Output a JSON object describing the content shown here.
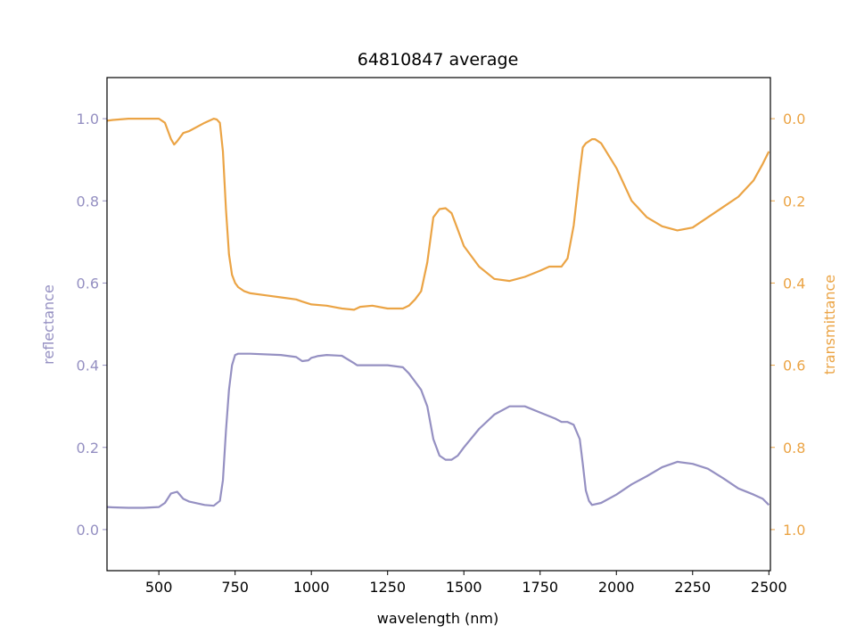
{
  "chart_data": {
    "type": "line",
    "title": "64810847 average",
    "xlabel": "wavelength (nm)",
    "ylabel_left": "reflectance",
    "ylabel_right": "transmittance",
    "xlim": [
      330,
      2505
    ],
    "ylim_left": [
      -0.1,
      1.1
    ],
    "ylim_right_inverted": [
      1.1,
      -0.1
    ],
    "xticks": [
      500,
      750,
      1000,
      1250,
      1500,
      1750,
      2000,
      2250,
      2500
    ],
    "yticks_left": [
      0.0,
      0.2,
      0.4,
      0.6,
      0.8,
      1.0
    ],
    "yticks_right": [
      0.0,
      0.2,
      0.4,
      0.6,
      0.8,
      1.0
    ],
    "xtick_labels": [
      "500",
      "750",
      "1000",
      "1250",
      "1500",
      "1750",
      "2000",
      "2250",
      "2500"
    ],
    "ytick_labels_left": [
      "0.0",
      "0.2",
      "0.4",
      "0.6",
      "0.8",
      "1.0"
    ],
    "ytick_labels_right": [
      "0.0",
      "0.2",
      "0.4",
      "0.6",
      "0.8",
      "1.0"
    ],
    "grid": false,
    "colors": {
      "reflectance": "#9590c2",
      "transmittance": "#eba445"
    },
    "series": [
      {
        "axis": "left",
        "color": "#9590c2",
        "x": [
          330,
          350,
          400,
          450,
          500,
          520,
          540,
          560,
          580,
          600,
          650,
          680,
          700,
          710,
          720,
          730,
          740,
          750,
          760,
          800,
          900,
          950,
          970,
          990,
          1000,
          1010,
          1020,
          1050,
          1100,
          1140,
          1150,
          1160,
          1200,
          1250,
          1300,
          1320,
          1340,
          1360,
          1380,
          1390,
          1400,
          1420,
          1440,
          1460,
          1480,
          1500,
          1550,
          1600,
          1650,
          1700,
          1750,
          1800,
          1820,
          1840,
          1860,
          1880,
          1890,
          1900,
          1910,
          1920,
          1950,
          2000,
          2050,
          2100,
          2150,
          2200,
          2250,
          2300,
          2350,
          2400,
          2450,
          2480,
          2500
        ],
        "y": [
          0.055,
          0.054,
          0.053,
          0.053,
          0.055,
          0.065,
          0.088,
          0.092,
          0.075,
          0.068,
          0.06,
          0.058,
          0.07,
          0.12,
          0.24,
          0.34,
          0.4,
          0.425,
          0.428,
          0.428,
          0.425,
          0.42,
          0.41,
          0.412,
          0.418,
          0.42,
          0.422,
          0.425,
          0.423,
          0.405,
          0.4,
          0.4,
          0.4,
          0.4,
          0.395,
          0.38,
          0.36,
          0.34,
          0.3,
          0.26,
          0.22,
          0.18,
          0.17,
          0.17,
          0.18,
          0.2,
          0.245,
          0.28,
          0.3,
          0.3,
          0.285,
          0.27,
          0.262,
          0.262,
          0.255,
          0.22,
          0.16,
          0.095,
          0.07,
          0.06,
          0.065,
          0.085,
          0.11,
          0.13,
          0.152,
          0.165,
          0.16,
          0.148,
          0.125,
          0.1,
          0.085,
          0.075,
          0.06
        ]
      },
      {
        "axis": "right",
        "color": "#eba445",
        "x": [
          330,
          350,
          400,
          450,
          500,
          520,
          540,
          550,
          560,
          580,
          600,
          650,
          680,
          690,
          700,
          710,
          720,
          730,
          740,
          750,
          760,
          780,
          800,
          850,
          900,
          950,
          970,
          1000,
          1050,
          1100,
          1140,
          1160,
          1200,
          1250,
          1300,
          1320,
          1340,
          1360,
          1380,
          1400,
          1420,
          1440,
          1460,
          1480,
          1500,
          1550,
          1600,
          1650,
          1700,
          1750,
          1780,
          1800,
          1820,
          1840,
          1860,
          1880,
          1890,
          1900,
          1910,
          1920,
          1930,
          1950,
          2000,
          2050,
          2100,
          2150,
          2200,
          2250,
          2300,
          2350,
          2400,
          2450,
          2480,
          2500
        ],
        "y": [
          0.005,
          0.003,
          0.0,
          0.0,
          0.0,
          0.01,
          0.05,
          0.063,
          0.055,
          0.035,
          0.03,
          0.01,
          0.0,
          0.002,
          0.01,
          0.08,
          0.22,
          0.33,
          0.38,
          0.4,
          0.41,
          0.42,
          0.425,
          0.43,
          0.435,
          0.44,
          0.445,
          0.452,
          0.455,
          0.462,
          0.465,
          0.458,
          0.455,
          0.462,
          0.462,
          0.455,
          0.44,
          0.42,
          0.35,
          0.24,
          0.22,
          0.218,
          0.23,
          0.27,
          0.31,
          0.36,
          0.39,
          0.395,
          0.385,
          0.37,
          0.36,
          0.36,
          0.36,
          0.34,
          0.26,
          0.13,
          0.07,
          0.06,
          0.055,
          0.05,
          0.05,
          0.06,
          0.12,
          0.2,
          0.24,
          0.262,
          0.272,
          0.265,
          0.24,
          0.215,
          0.19,
          0.15,
          0.11,
          0.08
        ]
      }
    ]
  }
}
